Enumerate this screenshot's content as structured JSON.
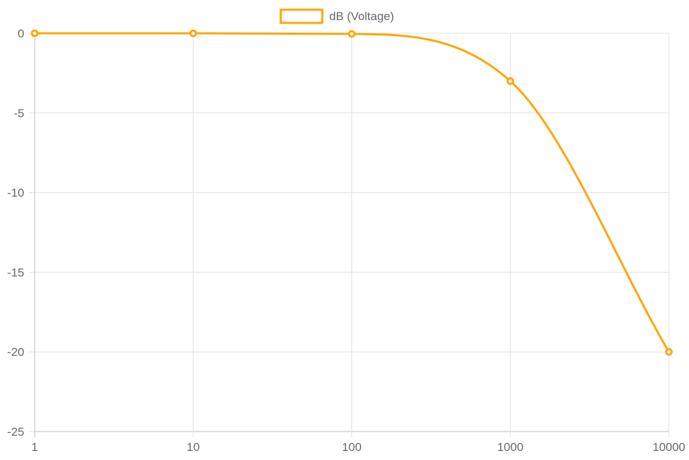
{
  "chart_data": {
    "type": "line",
    "x_scale": "log",
    "x": [
      1,
      10,
      100,
      1000,
      10000
    ],
    "x_tick_labels": [
      "1",
      "10",
      "100",
      "1000",
      "10000"
    ],
    "y_ticks": [
      0,
      -5,
      -10,
      -15,
      -20,
      -25
    ],
    "y_tick_labels": [
      "0",
      "-5",
      "-10",
      "-15",
      "-20",
      "-25"
    ],
    "ylim": [
      -25,
      0
    ],
    "grid": true,
    "legend_position": "top-center",
    "series": [
      {
        "name": "dB (Voltage)",
        "color": "#ffa500",
        "values": [
          0,
          0,
          -0.04,
          -3,
          -20
        ]
      }
    ]
  }
}
